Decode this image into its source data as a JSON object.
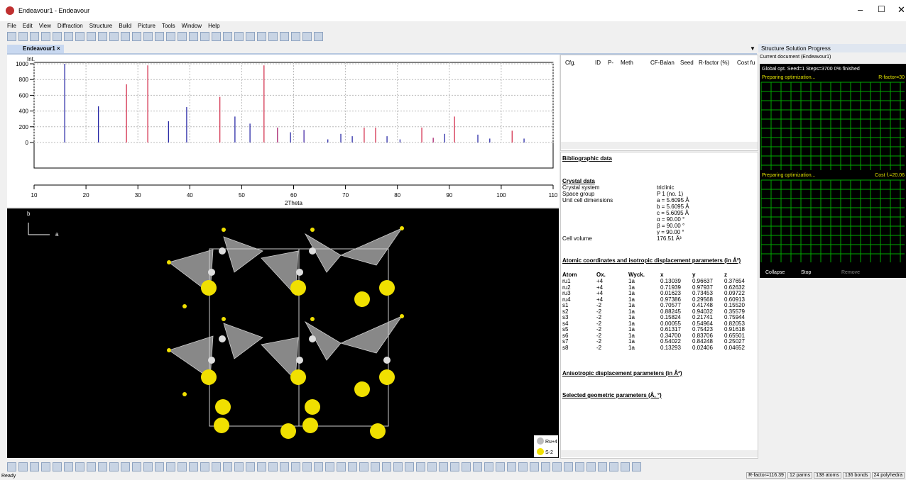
{
  "window": {
    "title": "Endeavour1 - Endeavour"
  },
  "menu": [
    "File",
    "Edit",
    "View",
    "Diffraction",
    "Structure",
    "Build",
    "Picture",
    "Tools",
    "Window",
    "Help"
  ],
  "tab": "Endeavour1",
  "pattern": {
    "y_label": "Int.",
    "x_label": "2Theta",
    "xlim": [
      10,
      110
    ],
    "ylim": [
      0,
      1000
    ],
    "xticks": [
      10,
      20,
      30,
      40,
      50,
      60,
      70,
      80,
      90,
      100,
      110
    ],
    "yticks": [
      0,
      200,
      400,
      600,
      800,
      1000
    ],
    "peaks": [
      {
        "x": 15.9,
        "y": 1000,
        "color": "#1a1aa0"
      },
      {
        "x": 22.4,
        "y": 460,
        "color": "#1a1aa0"
      },
      {
        "x": 27.8,
        "y": 740,
        "color": "#d02040"
      },
      {
        "x": 31.9,
        "y": 980,
        "color": "#d02040"
      },
      {
        "x": 35.9,
        "y": 270,
        "color": "#1a1aa0"
      },
      {
        "x": 39.4,
        "y": 450,
        "color": "#1a1aa0"
      },
      {
        "x": 45.8,
        "y": 580,
        "color": "#d02040"
      },
      {
        "x": 48.7,
        "y": 330,
        "color": "#1a1aa0"
      },
      {
        "x": 51.6,
        "y": 240,
        "color": "#1a1aa0"
      },
      {
        "x": 54.3,
        "y": 980,
        "color": "#d02040"
      },
      {
        "x": 56.9,
        "y": 190,
        "color": "#a01060"
      },
      {
        "x": 59.4,
        "y": 130,
        "color": "#1a1aa0"
      },
      {
        "x": 62.0,
        "y": 160,
        "color": "#3a1aa0"
      },
      {
        "x": 66.6,
        "y": 40,
        "color": "#1a1aa0"
      },
      {
        "x": 69.1,
        "y": 110,
        "color": "#1a1aa0"
      },
      {
        "x": 71.3,
        "y": 80,
        "color": "#1a1aa0"
      },
      {
        "x": 73.6,
        "y": 190,
        "color": "#d02040"
      },
      {
        "x": 75.8,
        "y": 190,
        "color": "#d02040"
      },
      {
        "x": 78.0,
        "y": 80,
        "color": "#1a1aa0"
      },
      {
        "x": 80.5,
        "y": 40,
        "color": "#1a1aa0"
      },
      {
        "x": 84.7,
        "y": 190,
        "color": "#d02040"
      },
      {
        "x": 86.9,
        "y": 60,
        "color": "#a01060"
      },
      {
        "x": 89.1,
        "y": 110,
        "color": "#1a1aa0"
      },
      {
        "x": 91.0,
        "y": 330,
        "color": "#d02040"
      },
      {
        "x": 95.5,
        "y": 100,
        "color": "#1a1aa0"
      },
      {
        "x": 97.8,
        "y": 50,
        "color": "#1a1aa0"
      },
      {
        "x": 102.1,
        "y": 150,
        "color": "#d02040"
      },
      {
        "x": 104.4,
        "y": 50,
        "color": "#1a1aa0"
      }
    ]
  },
  "cfg_table": {
    "columns": [
      "Cfg.",
      "ID",
      "P-",
      "Meth",
      "CF-Balan",
      "Seed",
      "R-factor (%)",
      "Cost fu"
    ]
  },
  "report": {
    "bibliographic": "Bibliographic data",
    "crystal_heading": "Crystal data",
    "crystal": [
      [
        "Crystal system",
        "triclinic"
      ],
      [
        "Space group",
        "P 1 (no. 1)"
      ]
    ],
    "cell_label": "Unit cell dimensions",
    "cell": [
      "a = 5.6095 Å",
      "b = 5.6095 Å",
      "c = 5.6095 Å",
      "α = 90.00 °",
      "β = 90.00 °",
      "γ = 90.00 °"
    ],
    "volume": [
      "Cell volume",
      "176.51 Å³"
    ],
    "atomic_heading": "Atomic coordinates and isotropic displacement parameters (in Å²)",
    "columns": [
      "Atom",
      "Ox.",
      "Wyck.",
      "x",
      "y",
      "z"
    ],
    "atoms": [
      [
        "ru1",
        "+4",
        "1a",
        "0.13039",
        "0.96637",
        "0.37654"
      ],
      [
        "ru2",
        "+4",
        "1a",
        "0.71939",
        "0.97937",
        "0.62632"
      ],
      [
        "ru3",
        "+4",
        "1a",
        "0.01623",
        "0.73453",
        "0.09722"
      ],
      [
        "ru4",
        "+4",
        "1a",
        "0.97386",
        "0.29568",
        "0.60913"
      ],
      [
        "s1",
        "-2",
        "1a",
        "0.70577",
        "0.41748",
        "0.15520"
      ],
      [
        "s2",
        "-2",
        "1a",
        "0.88245",
        "0.94032",
        "0.35579"
      ],
      [
        "s3",
        "-2",
        "1a",
        "0.15824",
        "0.21741",
        "0.75944"
      ],
      [
        "s4",
        "-2",
        "1a",
        "0.00055",
        "0.54964",
        "0.82053"
      ],
      [
        "s5",
        "-2",
        "1a",
        "0.61317",
        "0.75423",
        "0.91618"
      ],
      [
        "s6",
        "-2",
        "1a",
        "0.34700",
        "0.83706",
        "0.65501"
      ],
      [
        "s7",
        "-2",
        "1a",
        "0.54022",
        "0.84248",
        "0.25027"
      ],
      [
        "s8",
        "-2",
        "1a",
        "0.13293",
        "0.02406",
        "0.04652"
      ]
    ],
    "anisotropic": "Anisotropic displacement parameters (in Å²)",
    "geometric": "Selected geometric parameters (Å, °)"
  },
  "structure_view": {
    "axes": [
      "b",
      "a"
    ],
    "legend": [
      "Ru+4",
      "S-2"
    ]
  },
  "progress": {
    "title": "Structure Solution Progress",
    "current": "Current document (Endeavour1)",
    "status": "Global opt.  Seed=1  Steps=3700  0% finished",
    "panel1": "Preparing optimization...",
    "rfactor": "R-factor=30",
    "panel2": "Preparing optimization...",
    "cost": "Cost f.=20.06",
    "buttons": [
      "Collapse",
      "Stop",
      "Remove"
    ]
  },
  "status": {
    "left": "Ready",
    "right": [
      "R-factor=116.39",
      "12 parms",
      "138 atoms",
      "136 bonds",
      "24 polyhedra"
    ]
  }
}
